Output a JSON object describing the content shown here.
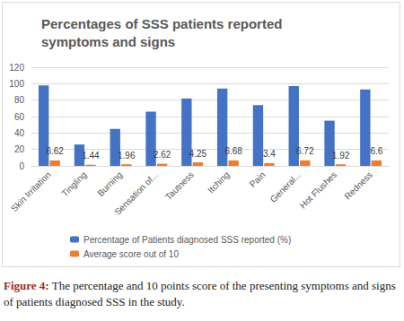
{
  "chart_data": {
    "type": "bar",
    "title": "Percentages of SSS patients reported symptoms and signs",
    "categories": [
      "Skin Irritation",
      "Tingling",
      "Burning",
      "Sensation of...",
      "Tautness",
      "Itching",
      "Pain",
      "General...",
      "Hot Flushes",
      "Redness"
    ],
    "series": [
      {
        "name": "Percentage of Patients diagnosed SSS reported (%)",
        "color": "#4472c4",
        "values": [
          98,
          26,
          45,
          66,
          82,
          94,
          74,
          97,
          55,
          93
        ]
      },
      {
        "name": "Average score out of 10",
        "color": "#ed7d31",
        "values": [
          6.62,
          1.44,
          1.96,
          2.62,
          4.25,
          6.68,
          3.4,
          6.72,
          1.92,
          6.6
        ],
        "data_labels": true
      }
    ],
    "ylim": [
      0,
      120
    ],
    "yticks": [
      0,
      20,
      40,
      60,
      80,
      100,
      120
    ],
    "grid": true,
    "legend": "bottom",
    "caption_label": "Figure 4:",
    "caption": "The percentage and 10 points score of the presenting symptoms and signs of patients diagnosed SSS in the study."
  }
}
